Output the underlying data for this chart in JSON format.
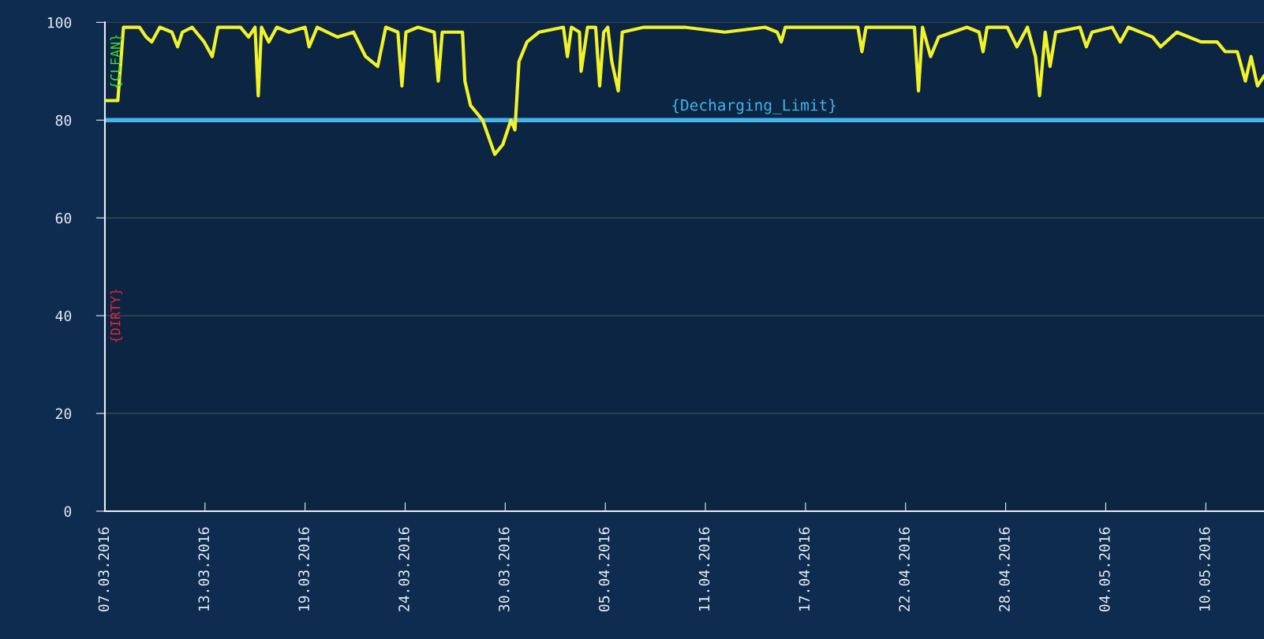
{
  "chart_data": {
    "type": "line",
    "x": [
      "2016-03-07T09:50",
      "2016-03-08T03:51",
      "2016-03-08T11:44",
      "2016-03-08T23:00",
      "2016-03-09T10:15",
      "2016-03-09T19:15",
      "2016-03-10T03:08",
      "2016-03-10T14:24",
      "2016-03-11T07:18",
      "2016-03-11T15:11",
      "2016-03-11T21:56",
      "2016-03-12T11:27",
      "2016-03-13T04:21",
      "2016-03-13T15:36",
      "2016-03-13T23:29",
      "2016-03-15T07:00",
      "2016-03-15T18:18",
      "2016-03-16T03:17",
      "2016-03-16T07:47",
      "2016-03-16T12:17",
      "2016-03-16T22:25",
      "2016-03-17T09:42",
      "2016-03-18T02:35",
      "2016-03-19T01:08",
      "2016-03-19T06:45",
      "2016-03-19T18:02",
      "2016-03-20T22:11",
      "2016-03-21T20:40",
      "2016-03-22T13:35",
      "2016-03-23T06:25",
      "2016-03-23T17:43",
      "2016-03-24T10:36",
      "2016-03-24T16:14",
      "2016-03-24T21:52",
      "2016-03-25T14:46",
      "2016-03-26T13:17",
      "2016-03-26T18:54",
      "2016-03-27T00:32",
      "2016-03-28T04:43",
      "2016-03-28T08:05",
      "2016-03-28T15:58",
      "2016-03-29T08:50",
      "2016-03-30T01:44",
      "2016-03-30T13:00",
      "2016-03-31T00:17",
      "2016-03-31T05:55",
      "2016-03-31T11:32",
      "2016-03-31T22:49",
      "2016-04-01T15:41",
      "2016-04-03T01:29",
      "2016-04-03T07:08",
      "2016-04-03T12:44",
      "2016-04-03T23:56",
      "2016-04-04T02:14",
      "2016-04-04T11:14",
      "2016-04-04T22:32",
      "2016-04-05T04:08",
      "2016-04-05T09:47",
      "2016-04-05T15:25",
      "2016-04-05T21:02",
      "2016-04-06T06:02",
      "2016-04-06T11:40",
      "2016-04-07T18:04",
      "2016-04-10T02:21",
      "2016-04-12T10:38",
      "2016-04-14T18:55",
      "2016-04-15T11:48",
      "2016-04-15T17:26",
      "2016-04-15T23:04",
      "2016-04-17T03:15",
      "2016-04-19T00:18",
      "2016-04-20T04:26",
      "2016-04-20T10:04",
      "2016-04-20T15:42",
      "2016-04-21T19:56",
      "2016-04-23T11:19",
      "2016-04-23T16:57",
      "2016-04-23T22:34",
      "2016-04-24T09:50",
      "2016-04-24T21:07",
      "2016-04-26T12:31",
      "2016-04-27T05:25",
      "2016-04-27T11:03",
      "2016-04-27T16:40",
      "2016-04-28T20:49",
      "2016-04-29T10:20",
      "2016-04-30T00:58",
      "2016-04-30T12:14",
      "2016-04-30T17:52",
      "2016-05-01T01:45",
      "2016-05-01T08:31",
      "2016-05-01T16:24",
      "2016-05-03T02:10",
      "2016-05-03T11:09",
      "2016-05-03T19:02",
      "2016-05-04T23:14",
      "2016-05-05T10:30",
      "2016-05-05T21:45",
      "2016-05-07T07:32",
      "2016-05-07T18:48",
      "2016-05-08T17:20",
      "2016-05-10T03:06",
      "2016-05-11T01:37",
      "2016-05-11T12:53",
      "2016-05-12T05:44",
      "2016-05-12T17:01",
      "2016-05-13T00:56",
      "2016-05-13T09:55",
      "2016-05-13T18:55"
    ],
    "series": [
      {
        "color": "#f2f22a",
        "values": [
          84,
          84,
          99,
          99,
          99,
          97,
          96,
          99,
          98,
          95,
          98,
          99,
          96,
          93,
          99,
          99,
          97,
          99,
          85,
          99,
          96,
          99,
          98,
          99,
          95,
          99,
          97,
          98,
          93,
          91,
          99,
          98,
          87,
          98,
          99,
          98,
          88,
          98,
          98,
          88,
          83,
          80,
          73,
          75,
          80,
          78,
          92,
          96,
          98,
          99,
          93,
          99,
          98,
          90,
          99,
          99,
          87,
          98,
          99,
          92,
          86,
          98,
          99,
          99,
          98,
          99,
          98,
          96,
          99,
          99,
          99,
          99,
          94,
          99,
          99,
          99,
          86,
          99,
          93,
          97,
          99,
          98,
          94,
          99,
          99,
          95,
          99,
          93,
          85,
          98,
          91,
          98,
          99,
          95,
          98,
          99,
          96,
          99,
          97,
          95,
          98,
          96,
          96,
          94,
          94,
          88,
          93,
          87,
          89
        ]
      }
    ],
    "xlim": [
      "2016-03-07T09:50",
      "2016-05-13T19:00"
    ],
    "xticks": [
      {
        "value": "2016-03-07T09:50",
        "label": "07.03.2016"
      },
      {
        "value": "2016-03-13T05:28",
        "label": "13.03.2016"
      },
      {
        "value": "2016-03-19T01:06",
        "label": "19.03.2016"
      },
      {
        "value": "2016-03-24T20:45",
        "label": "24.03.2016"
      },
      {
        "value": "2016-03-30T16:23",
        "label": "30.03.2016"
      },
      {
        "value": "2016-04-05T12:01",
        "label": "05.04.2016"
      },
      {
        "value": "2016-04-11T07:39",
        "label": "11.04.2016"
      },
      {
        "value": "2016-04-17T03:17",
        "label": "17.04.2016"
      },
      {
        "value": "2016-04-22T22:55",
        "label": "22.04.2016"
      },
      {
        "value": "2016-04-28T18:34",
        "label": "28.04.2016"
      },
      {
        "value": "2016-05-04T14:12",
        "label": "04.05.2016"
      },
      {
        "value": "2016-05-10T09:50",
        "label": "10.05.2016"
      }
    ],
    "ylim": [
      0,
      100
    ],
    "yticks": [
      0,
      20,
      40,
      60,
      80,
      100
    ],
    "grid": "y",
    "ref_lines": [
      {
        "axis": "y",
        "value": 80,
        "label": "{Decharging_Limit}",
        "color": "#45b4ec"
      }
    ],
    "annotations": [
      "{CLEAN}",
      "{DIRTY}"
    ]
  }
}
